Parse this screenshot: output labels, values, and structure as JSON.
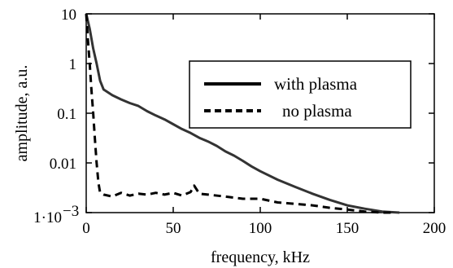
{
  "chart_data": {
    "type": "line",
    "xlabel": "frequency, kHz",
    "ylabel": "amplitude, a.u.",
    "xlim": [
      0,
      200
    ],
    "ylim": [
      0.001,
      10
    ],
    "yscale": "log",
    "x_ticks": [
      0,
      50,
      100,
      150,
      200
    ],
    "x_tick_labels": [
      "0",
      "50",
      "100",
      "150",
      "200"
    ],
    "y_ticks": [
      0.001,
      0.01,
      0.1,
      1,
      10
    ],
    "y_tick_labels": [
      "1·10",
      "0.01",
      "0.1",
      "1",
      "10"
    ],
    "y_tick_exponent": "−3",
    "grid": false,
    "legend": "top-right",
    "series": [
      {
        "name": "with plasma",
        "style": "solid",
        "color": "#333333",
        "x": [
          0,
          2,
          4,
          6,
          8,
          10,
          15,
          20,
          25,
          30,
          35,
          40,
          45,
          50,
          55,
          60,
          65,
          70,
          75,
          80,
          85,
          90,
          95,
          100,
          110,
          120,
          130,
          140,
          150,
          160,
          170,
          180
        ],
        "y": [
          10,
          5,
          2,
          1.0,
          0.45,
          0.3,
          0.23,
          0.19,
          0.16,
          0.14,
          0.11,
          0.09,
          0.075,
          0.06,
          0.048,
          0.04,
          0.032,
          0.027,
          0.022,
          0.017,
          0.014,
          0.011,
          0.0085,
          0.0068,
          0.0046,
          0.0033,
          0.0024,
          0.0018,
          0.0014,
          0.0012,
          0.00105,
          0.001
        ]
      },
      {
        "name": "no plasma",
        "style": "dashed",
        "color": "#000000",
        "x": [
          0,
          1,
          2,
          3,
          4,
          5,
          6,
          7,
          8,
          10,
          15,
          20,
          25,
          30,
          35,
          40,
          45,
          50,
          55,
          60,
          62,
          65,
          70,
          80,
          90,
          100,
          110,
          120,
          130,
          140,
          150,
          160,
          170,
          175
        ],
        "y": [
          10,
          3.0,
          1.0,
          0.3,
          0.1,
          0.03,
          0.01,
          0.004,
          0.0025,
          0.0023,
          0.0021,
          0.0025,
          0.0022,
          0.0024,
          0.0023,
          0.0025,
          0.0023,
          0.0025,
          0.0022,
          0.0026,
          0.0035,
          0.0024,
          0.0023,
          0.0021,
          0.0019,
          0.0019,
          0.0016,
          0.0015,
          0.0014,
          0.00125,
          0.00115,
          0.00105,
          0.001,
          0.001
        ]
      }
    ]
  }
}
